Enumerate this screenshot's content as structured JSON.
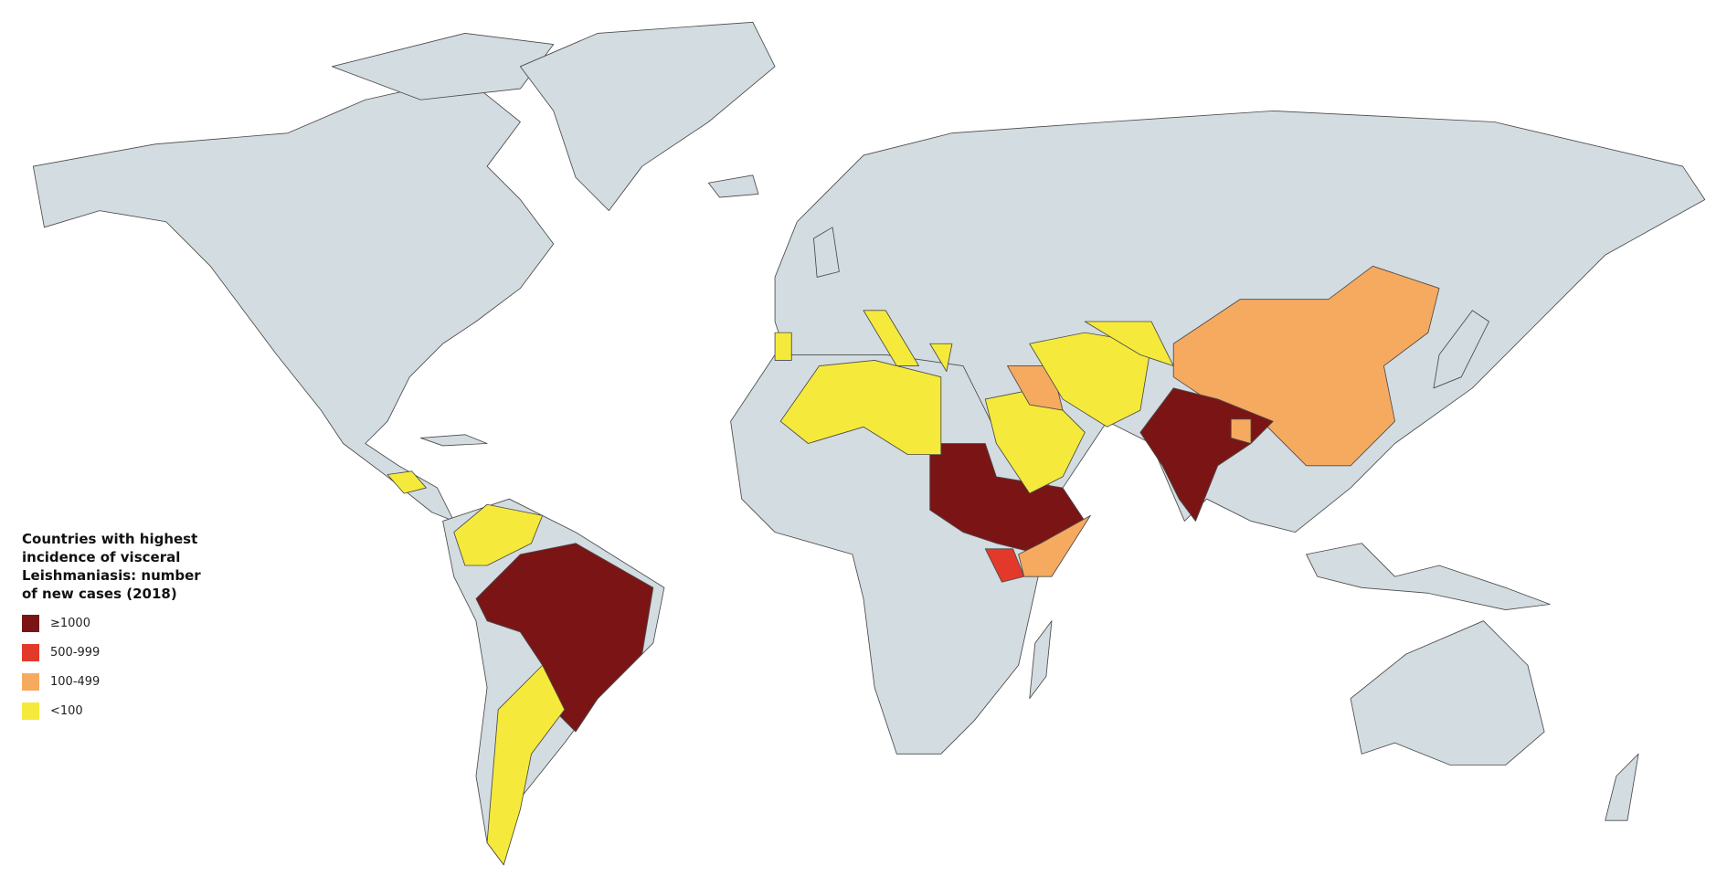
{
  "legend": {
    "title": "Countries with highest incidence of visceral Leishmaniasis: number of new cases (2018)",
    "items": [
      {
        "label": "≥1000",
        "color": "#7b1515"
      },
      {
        "label": "500-999",
        "color": "#e2392a"
      },
      {
        "label": "100-499",
        "color": "#f6aa60"
      },
      {
        "label": "<100",
        "color": "#f5ea3b"
      }
    ]
  }
}
